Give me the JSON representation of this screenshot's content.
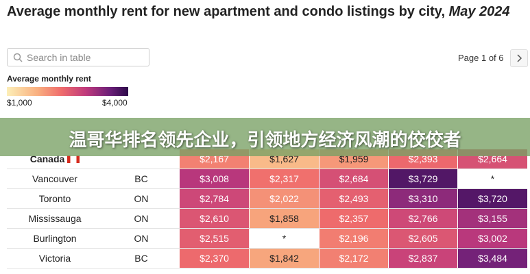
{
  "header": {
    "title": "Average monthly rent for new apartment and condo listings by city, ",
    "title_em": "May 2024"
  },
  "search": {
    "placeholder": "Search in table"
  },
  "pagination": {
    "label": "Page 1 of 6"
  },
  "legend": {
    "title": "Average monthly rent",
    "min": {
      "value": 1000,
      "label": "$1,000"
    },
    "max": {
      "value": 4000,
      "label": "$4,000"
    }
  },
  "banner": {
    "text": "温哥华排名领先企业，引领地方经济风潮的佼佼者"
  },
  "table": {
    "rows": [
      {
        "city": "Canada",
        "province": null,
        "cells": [
          {
            "value": 2167,
            "label": "$2,167"
          },
          {
            "value": 1627,
            "label": "$1,627"
          },
          {
            "value": 1959,
            "label": "$1,959"
          },
          {
            "value": 2393,
            "label": "$2,393"
          },
          {
            "value": 2664,
            "label": "$2,664"
          }
        ]
      },
      {
        "city": "Vancouver",
        "province": "BC",
        "cells": [
          {
            "value": 3008,
            "label": "$3,008"
          },
          {
            "value": 2317,
            "label": "$2,317"
          },
          {
            "value": 2684,
            "label": "$2,684"
          },
          {
            "value": 3729,
            "label": "$3,729"
          },
          {
            "value": null,
            "label": "*"
          }
        ]
      },
      {
        "city": "Toronto",
        "province": "ON",
        "cells": [
          {
            "value": 2784,
            "label": "$2,784"
          },
          {
            "value": 2022,
            "label": "$2,022"
          },
          {
            "value": 2493,
            "label": "$2,493"
          },
          {
            "value": 3310,
            "label": "$3,310"
          },
          {
            "value": 3720,
            "label": "$3,720"
          }
        ]
      },
      {
        "city": "Mississauga",
        "province": "ON",
        "cells": [
          {
            "value": 2610,
            "label": "$2,610"
          },
          {
            "value": 1858,
            "label": "$1,858"
          },
          {
            "value": 2357,
            "label": "$2,357"
          },
          {
            "value": 2766,
            "label": "$2,766"
          },
          {
            "value": 3155,
            "label": "$3,155"
          }
        ]
      },
      {
        "city": "Burlington",
        "province": "ON",
        "cells": [
          {
            "value": 2515,
            "label": "$2,515"
          },
          {
            "value": null,
            "label": "*"
          },
          {
            "value": 2196,
            "label": "$2,196"
          },
          {
            "value": 2605,
            "label": "$2,605"
          },
          {
            "value": 3002,
            "label": "$3,002"
          }
        ]
      },
      {
        "city": "Victoria",
        "province": "BC",
        "cells": [
          {
            "value": 2370,
            "label": "$2,370"
          },
          {
            "value": 1842,
            "label": "$1,842"
          },
          {
            "value": 2172,
            "label": "$2,172"
          },
          {
            "value": 2837,
            "label": "$2,837"
          },
          {
            "value": 3484,
            "label": "$3,484"
          }
        ]
      }
    ]
  }
}
